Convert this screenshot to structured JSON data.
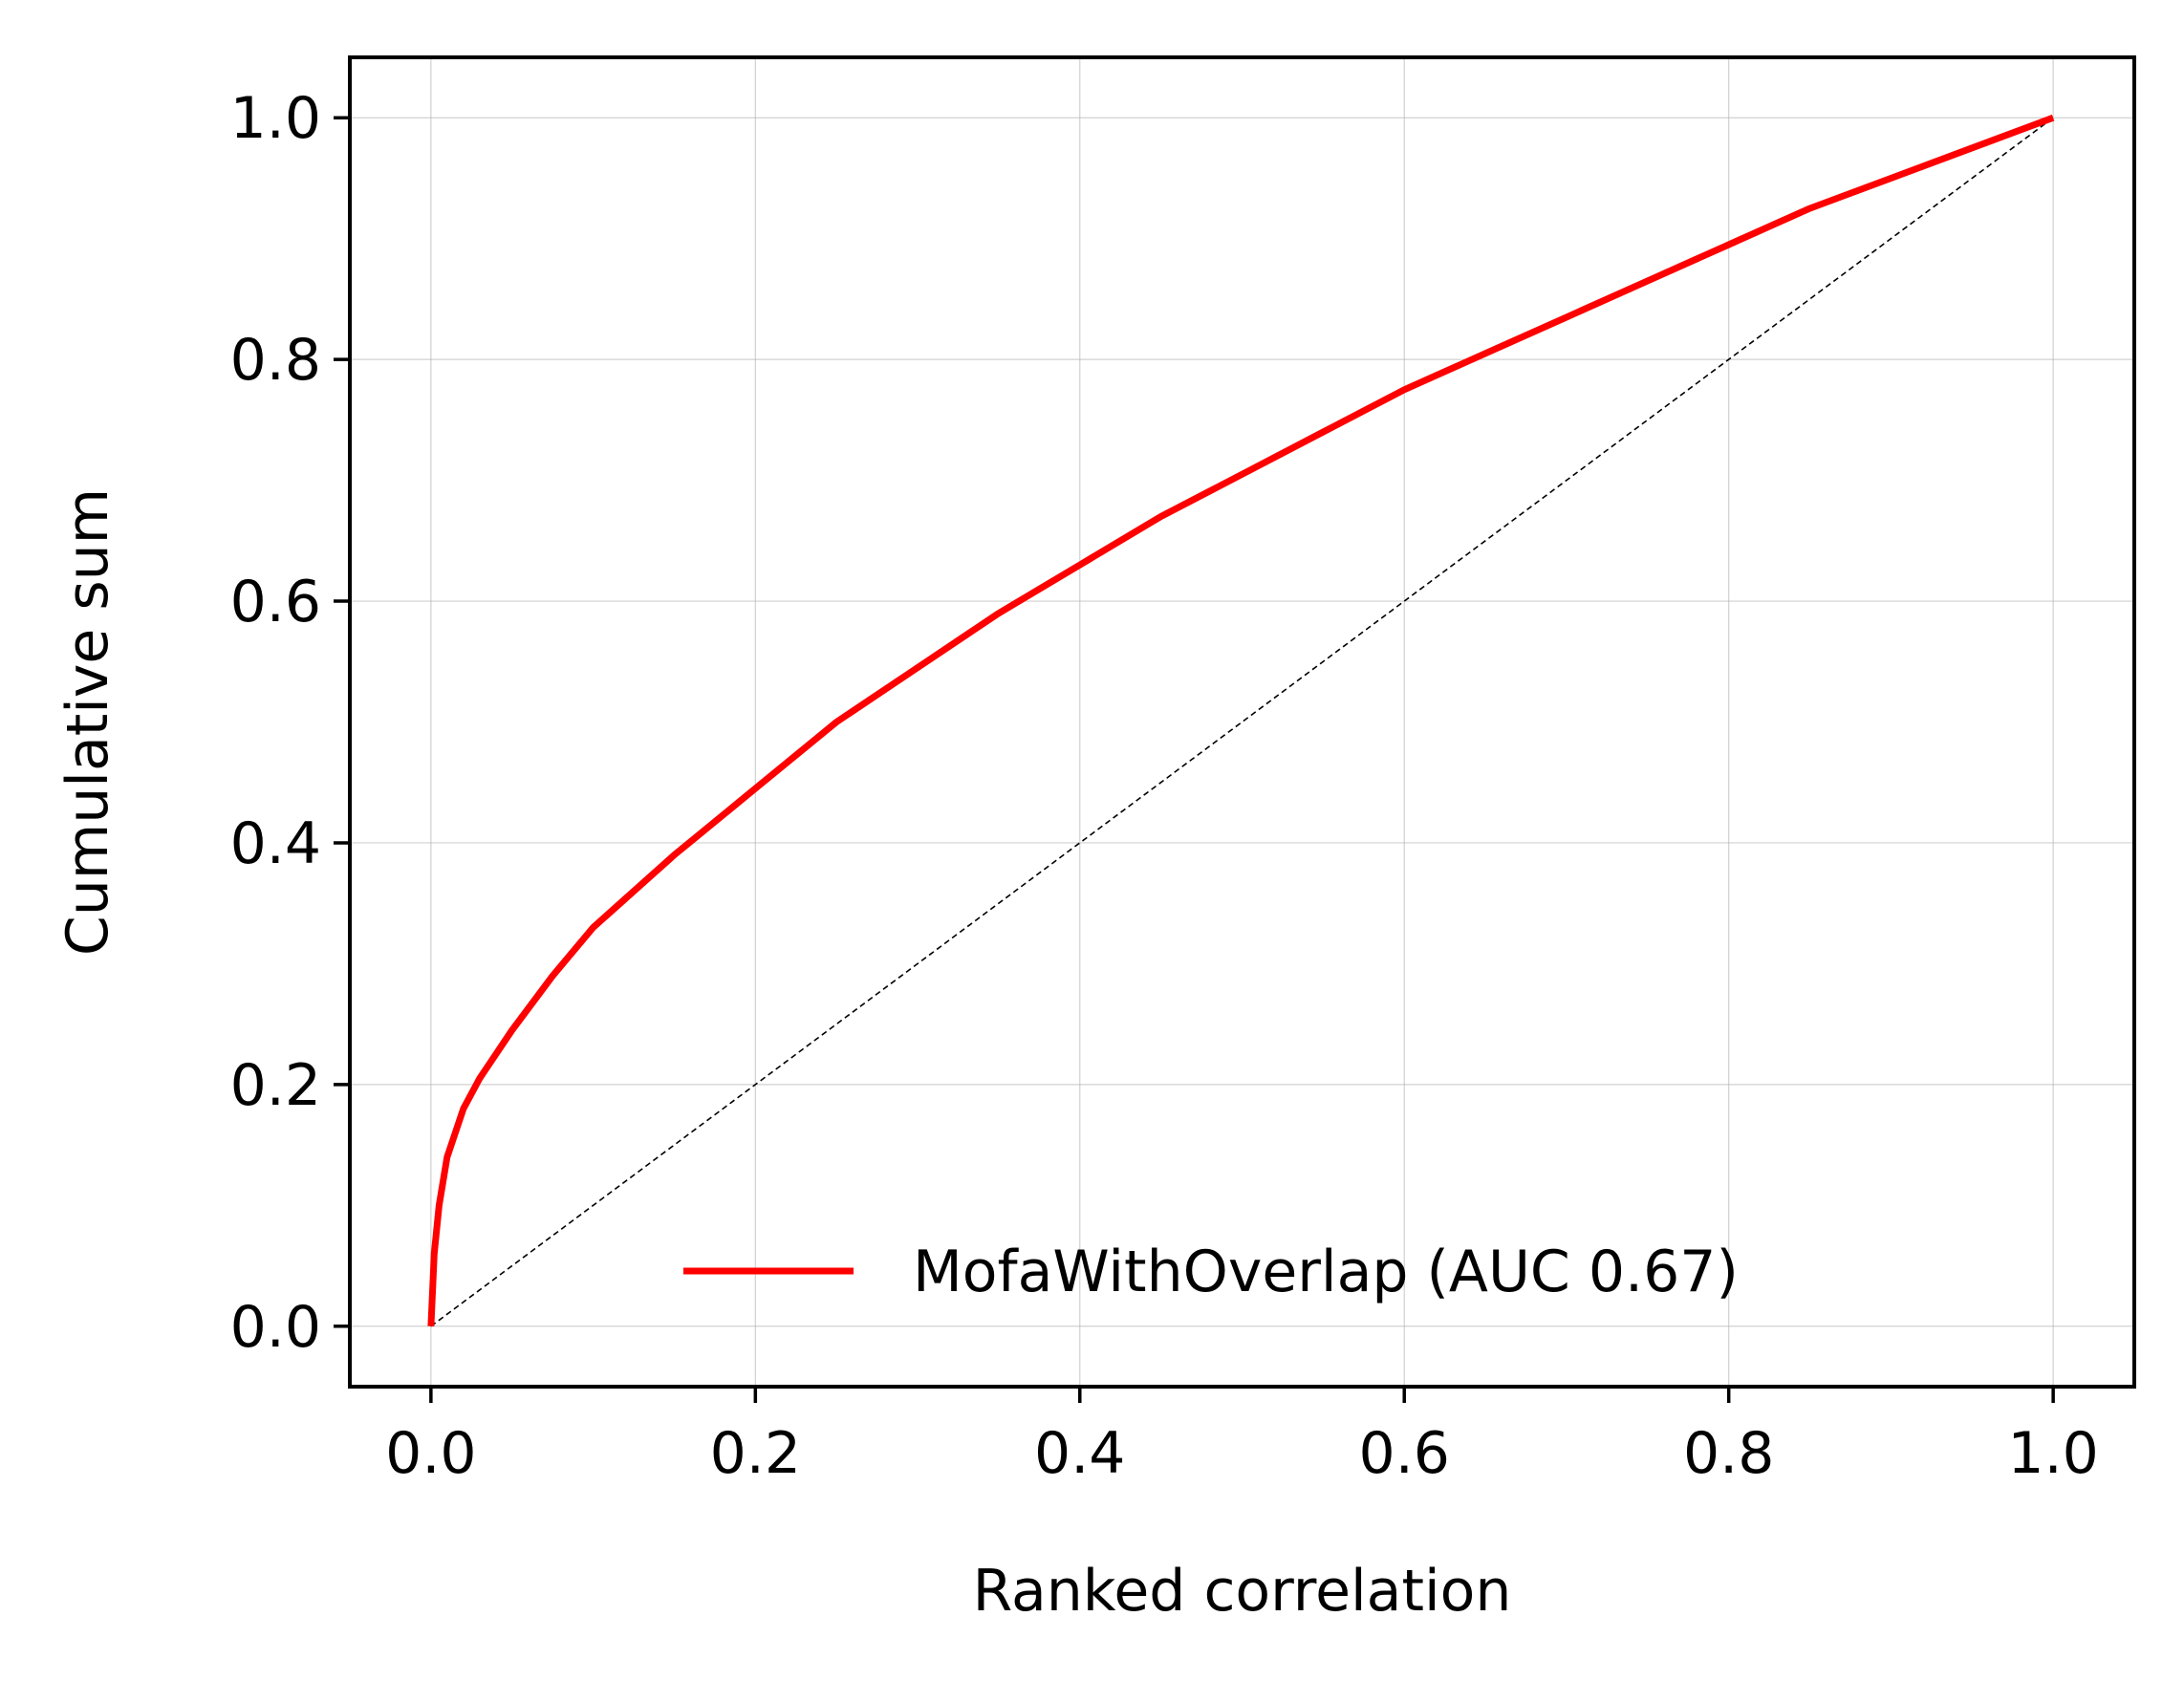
{
  "chart_data": {
    "type": "line",
    "title": "",
    "xlabel": "Ranked correlation",
    "ylabel": "Cumulative sum",
    "xlim": [
      -0.05,
      1.05
    ],
    "ylim": [
      -0.05,
      1.05
    ],
    "x_ticks": [
      0.0,
      0.2,
      0.4,
      0.6,
      0.8,
      1.0
    ],
    "x_tick_labels": [
      "0.0",
      "0.2",
      "0.4",
      "0.6",
      "0.8",
      "1.0"
    ],
    "y_ticks": [
      0.0,
      0.2,
      0.4,
      0.6,
      0.8,
      1.0
    ],
    "y_tick_labels": [
      "0.0",
      "0.2",
      "0.4",
      "0.6",
      "0.8",
      "1.0"
    ],
    "grid": true,
    "legend_position": "lower-right",
    "series": [
      {
        "name": "MofaWithOverlap (AUC 0.67)",
        "color": "#ff0000",
        "x": [
          0.0,
          0.002,
          0.005,
          0.01,
          0.02,
          0.03,
          0.05,
          0.075,
          0.1,
          0.15,
          0.2,
          0.25,
          0.3,
          0.35,
          0.4,
          0.45,
          0.5,
          0.55,
          0.6,
          0.65,
          0.7,
          0.75,
          0.8,
          0.85,
          0.9,
          0.95,
          1.0
        ],
        "y": [
          0.0,
          0.06,
          0.1,
          0.14,
          0.18,
          0.205,
          0.245,
          0.29,
          0.33,
          0.39,
          0.445,
          0.5,
          0.545,
          0.59,
          0.63,
          0.67,
          0.705,
          0.74,
          0.775,
          0.805,
          0.835,
          0.865,
          0.895,
          0.925,
          0.95,
          0.975,
          1.0
        ]
      }
    ],
    "reference_line": {
      "style": "dashed",
      "color": "#000000",
      "x": [
        0.0,
        1.0
      ],
      "y": [
        0.0,
        1.0
      ]
    }
  }
}
